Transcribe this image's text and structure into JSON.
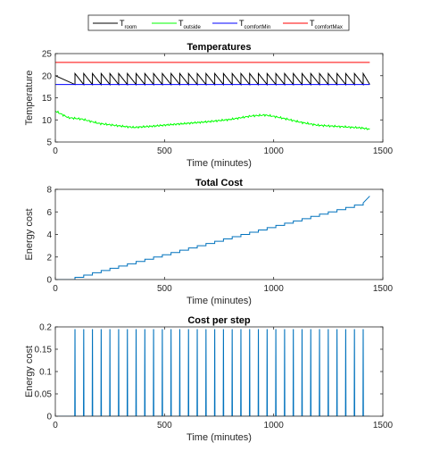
{
  "legend": {
    "position": "top-center",
    "entries": [
      {
        "base": "T",
        "sub": "room",
        "color": "#000000"
      },
      {
        "base": "T",
        "sub": "outside",
        "color": "#00ff00"
      },
      {
        "base": "T",
        "sub": "comfortMin",
        "color": "#0000ff"
      },
      {
        "base": "T",
        "sub": "comfortMax",
        "color": "#ff0000"
      }
    ]
  },
  "chart_data": [
    {
      "type": "line",
      "title": "Temperatures",
      "xlabel": "Time (minutes)",
      "ylabel": "Temperature",
      "xlim": [
        0,
        1500
      ],
      "ylim": [
        5,
        25
      ],
      "xticks": [
        "0",
        "500",
        "1000",
        "1500"
      ],
      "yticks": [
        "5",
        "10",
        "15",
        "20",
        "25"
      ],
      "grid": false,
      "series": [
        {
          "color": "#000000",
          "kind": "sawtooth",
          "start": [
            0,
            20
          ],
          "first_heat_time": 90,
          "period": 40,
          "low": 18,
          "high": 20.5,
          "end_time": 1440
        },
        {
          "color": "#00ff00",
          "x": [
            0,
            60,
            120,
            200,
            300,
            360,
            450,
            520,
            600,
            700,
            800,
            900,
            960,
            1000,
            1060,
            1120,
            1200,
            1300,
            1400,
            1440
          ],
          "y": [
            12,
            10.5,
            10.2,
            9.2,
            8.6,
            8.3,
            8.6,
            8.9,
            9.2,
            9.6,
            10.1,
            10.9,
            11.1,
            10.8,
            10.2,
            9.5,
            8.8,
            8.5,
            8.2,
            7.9
          ]
        },
        {
          "color": "#0000ff",
          "x": [
            0,
            1440
          ],
          "y": [
            18,
            18
          ]
        },
        {
          "color": "#ff0000",
          "x": [
            0,
            1440
          ],
          "y": [
            23,
            23
          ]
        }
      ]
    },
    {
      "type": "line",
      "title": "Total Cost",
      "xlabel": "Time (minutes)",
      "ylabel": "Energy cost",
      "xlim": [
        0,
        1500
      ],
      "ylim": [
        0,
        8
      ],
      "xticks": [
        "0",
        "500",
        "1000",
        "1500"
      ],
      "yticks": [
        "0",
        "2",
        "4",
        "6",
        "8"
      ],
      "grid": false,
      "series": [
        {
          "color": "#0072bd",
          "kind": "staircase",
          "first_step_time": 90,
          "period": 40,
          "step_value": 0.2,
          "end_time": 1440,
          "final_value": 7.4
        }
      ]
    },
    {
      "type": "line",
      "title": "Cost per step",
      "xlabel": "Time (minutes)",
      "ylabel": "Energy cost",
      "xlim": [
        0,
        1500
      ],
      "ylim": [
        0,
        0.2
      ],
      "xticks": [
        "0",
        "500",
        "1000",
        "1500"
      ],
      "yticks": [
        "0",
        "0.05",
        "0.1",
        "0.15",
        "0.2"
      ],
      "grid": false,
      "series": [
        {
          "color": "#0072bd",
          "kind": "spikes",
          "first_spike_time": 90,
          "period": 40,
          "spike_value": 0.195,
          "end_time": 1440
        }
      ]
    }
  ]
}
